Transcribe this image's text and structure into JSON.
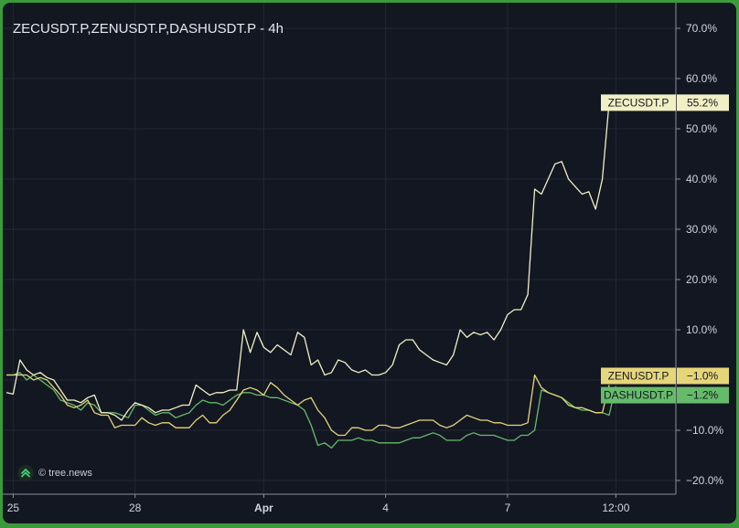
{
  "watermark": {
    "text": "© tree.news",
    "logo": "tree-news-logo-icon"
  },
  "chart_data": {
    "type": "line",
    "title": "ZECUSDT.P,ZENUSDT.P,DASHUSDT.P - 4h",
    "y_unit": "%",
    "ylim": [
      -22,
      75
    ],
    "y_ticks": [
      "70.0%",
      "60.0%",
      "50.0%",
      "40.0%",
      "30.0%",
      "20.0%",
      "10.0%",
      "−10.0%",
      "−20.0%"
    ],
    "y_tick_values": [
      70,
      60,
      50,
      40,
      30,
      20,
      10,
      -10,
      -20
    ],
    "x_ticks": [
      "25",
      "28",
      "Apr",
      "4",
      "7",
      "12:00"
    ],
    "x_tick_index": [
      1,
      19,
      38,
      56,
      74,
      90
    ],
    "grid": true,
    "series": [
      {
        "name": "ZECUSDT.P",
        "color": "#f1f0c4",
        "last_label": "55.2%",
        "values": [
          -2.5,
          -2.8,
          4,
          2,
          1,
          1.5,
          0.5,
          0,
          -2,
          -4,
          -4,
          -4.5,
          -3.5,
          -3,
          -6.5,
          -6.5,
          -7,
          -8,
          -6,
          -4.5,
          -5,
          -5.5,
          -6.5,
          -6,
          -6,
          -5.5,
          -5,
          -5,
          -1,
          -2,
          -3,
          -2.5,
          -2.5,
          -2,
          -2,
          10,
          5.5,
          9.5,
          6.5,
          5.5,
          7,
          6,
          5,
          9.5,
          8.5,
          3,
          4,
          1,
          1.5,
          4,
          3.5,
          2,
          1.5,
          2,
          1,
          1,
          1.5,
          3,
          7,
          8,
          8,
          6,
          5,
          4,
          3.5,
          3,
          5,
          10,
          8.5,
          9.5,
          9,
          9.5,
          8,
          10,
          13,
          14,
          14,
          17,
          38,
          37,
          40,
          43,
          43.5,
          40,
          38.5,
          37,
          37.5,
          34,
          40,
          55.2
        ]
      },
      {
        "name": "ZENUSDT.P",
        "color": "#e6d67a",
        "last_label": "−1.0%",
        "values": [
          1,
          1,
          1,
          1,
          0,
          0.5,
          0,
          -1.5,
          -3,
          -5,
          -5.5,
          -5,
          -4,
          -6.5,
          -7,
          -7,
          -9.5,
          -9,
          -9,
          -9,
          -7.5,
          -8.5,
          -9,
          -8.5,
          -8.5,
          -9.5,
          -9.5,
          -9.5,
          -8,
          -7,
          -8.5,
          -8.5,
          -7,
          -6,
          -4,
          -2,
          -1.5,
          -2,
          -3,
          -0.5,
          -1.5,
          -3,
          -4,
          -5,
          -4,
          -3.5,
          -6,
          -7.5,
          -10,
          -11,
          -11,
          -9.5,
          -9.5,
          -10,
          -10,
          -9,
          -9,
          -9.5,
          -9.5,
          -9,
          -8.5,
          -8,
          -8,
          -8,
          -9,
          -9.5,
          -9,
          -8,
          -7,
          -7.5,
          -8,
          -8,
          -8.5,
          -8.5,
          -9,
          -9,
          -9,
          -8.5,
          1,
          -1.5,
          -2.5,
          -3,
          -3.5,
          -5,
          -5.5,
          -5.5,
          -6,
          -6.5,
          -6.5,
          -1
        ]
      },
      {
        "name": "DASHUSDT.P",
        "color": "#66bb6a",
        "last_label": "−1.2%",
        "values": [
          1,
          1,
          1.5,
          0,
          1,
          0,
          -1,
          -2,
          -4,
          -4.5,
          -5,
          -6,
          -4.5,
          -5,
          -6.5,
          -6.5,
          -6.5,
          -7,
          -7.5,
          -5,
          -5,
          -6,
          -7,
          -6.5,
          -6.5,
          -7.5,
          -7,
          -6.5,
          -5,
          -4,
          -4.5,
          -4.5,
          -5,
          -4,
          -3,
          -2.5,
          -2.5,
          -3,
          -3,
          -3.5,
          -3.5,
          -4,
          -4.5,
          -5,
          -6,
          -9,
          -13,
          -12.5,
          -13.5,
          -12,
          -12,
          -12,
          -11.5,
          -12,
          -12,
          -12.5,
          -12.5,
          -12.5,
          -12.5,
          -12,
          -11.5,
          -11.5,
          -11,
          -10.5,
          -11,
          -12,
          -12,
          -12,
          -11,
          -10.5,
          -11,
          -11,
          -11,
          -11.5,
          -12,
          -12,
          -11,
          -11,
          -10,
          -2,
          -2.5,
          -3,
          -3.5,
          -4.5,
          -5.5,
          -6,
          -6,
          -6.5,
          -6.5,
          -7,
          -1.2
        ]
      }
    ]
  }
}
